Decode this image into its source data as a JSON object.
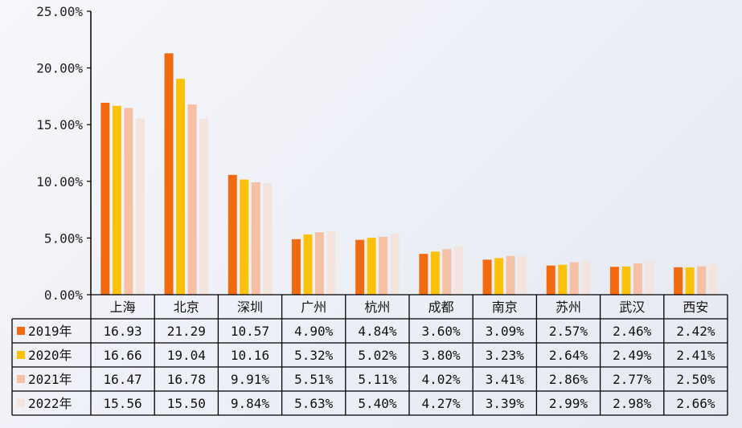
{
  "chart_data": {
    "type": "bar",
    "categories": [
      "上海",
      "北京",
      "深圳",
      "广州",
      "杭州",
      "成都",
      "南京",
      "苏州",
      "武汉",
      "西安"
    ],
    "yticks": [
      "0.00%",
      "5.00%",
      "10.00%",
      "15.00%",
      "20.00%",
      "25.00%"
    ],
    "ylim": [
      0,
      25
    ],
    "series": [
      {
        "name": "2019年",
        "color": "#f26a0f",
        "values": [
          16.93,
          21.29,
          10.57,
          4.9,
          4.84,
          3.6,
          3.09,
          2.57,
          2.46,
          2.42
        ],
        "labels": [
          "16.93",
          "21.29",
          "10.57",
          "4.90%",
          "4.84%",
          "3.60%",
          "3.09%",
          "2.57%",
          "2.46%",
          "2.42%"
        ]
      },
      {
        "name": "2020年",
        "color": "#fcc20a",
        "values": [
          16.66,
          19.04,
          10.16,
          5.32,
          5.02,
          3.8,
          3.23,
          2.64,
          2.49,
          2.41
        ],
        "labels": [
          "16.66",
          "19.04",
          "10.16",
          "5.32%",
          "5.02%",
          "3.80%",
          "3.23%",
          "2.64%",
          "2.49%",
          "2.41%"
        ]
      },
      {
        "name": "2021年",
        "color": "#f5c0a3",
        "values": [
          16.47,
          16.78,
          9.91,
          5.51,
          5.11,
          4.02,
          3.41,
          2.86,
          2.77,
          2.5
        ],
        "labels": [
          "16.47",
          "16.78",
          "9.91%",
          "5.51%",
          "5.11%",
          "4.02%",
          "3.41%",
          "2.86%",
          "2.77%",
          "2.50%"
        ]
      },
      {
        "name": "2022年",
        "color": "#f3e4dd",
        "values": [
          15.56,
          15.5,
          9.84,
          5.63,
          5.4,
          4.27,
          3.39,
          2.99,
          2.98,
          2.66
        ],
        "labels": [
          "15.56",
          "15.50",
          "9.84%",
          "5.63%",
          "5.40%",
          "4.27%",
          "3.39%",
          "2.99%",
          "2.98%",
          "2.66%"
        ]
      }
    ],
    "grid": false,
    "legend": "data-table-left"
  }
}
